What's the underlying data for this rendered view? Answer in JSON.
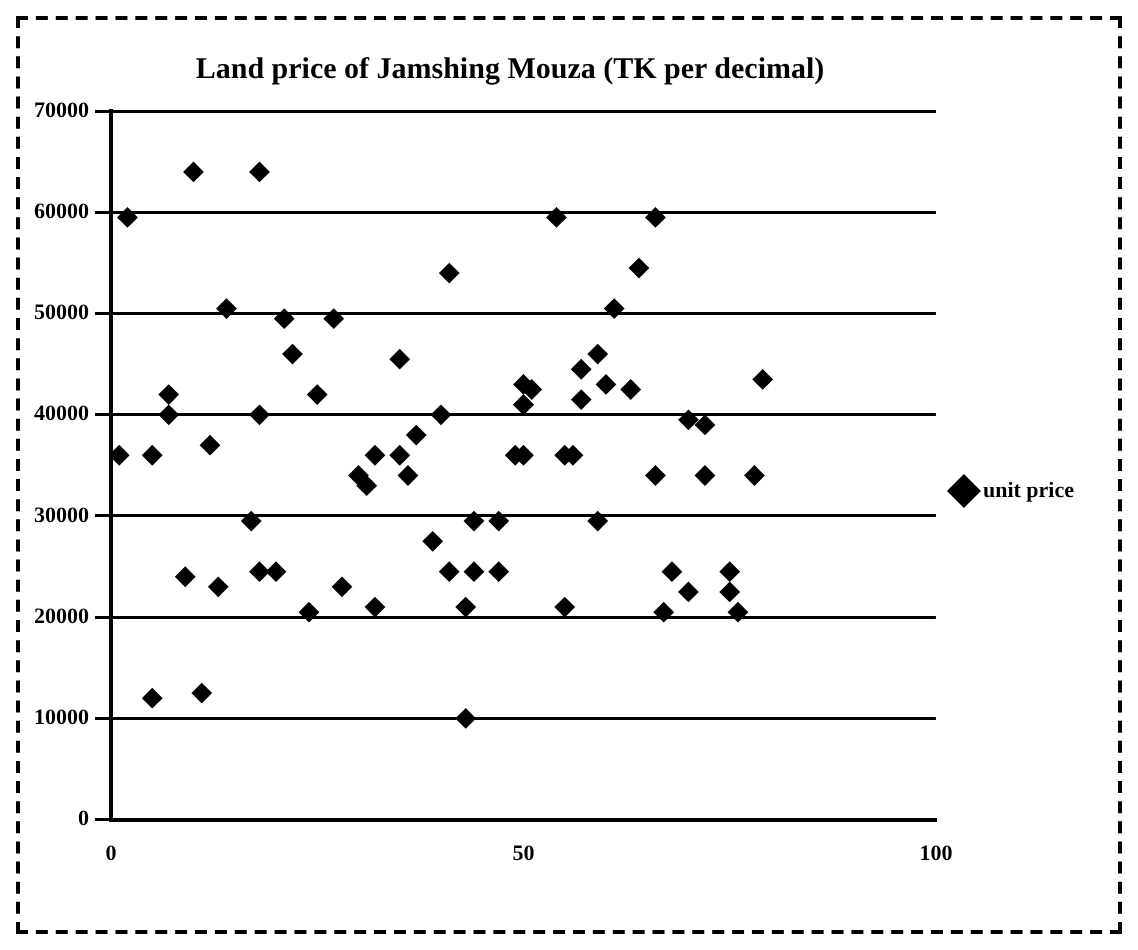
{
  "chart_data": {
    "type": "scatter",
    "title": "Land price of Jamshing Mouza (TK per decimal)",
    "series": [
      {
        "name": "unit price",
        "color": "#000000",
        "x": [
          10,
          18,
          2,
          54,
          41,
          14,
          21,
          22,
          27,
          35,
          7,
          7,
          18,
          25,
          12,
          1,
          5,
          40,
          37,
          35,
          32,
          30,
          31,
          36,
          50,
          50,
          49,
          55,
          57,
          17,
          9,
          13,
          18,
          20,
          24,
          28,
          32,
          39,
          41,
          44,
          47,
          44,
          47,
          43,
          55,
          5,
          11,
          43,
          66,
          64,
          61,
          59,
          79,
          51,
          50,
          57,
          60,
          63,
          70,
          72,
          50,
          56,
          66,
          72,
          78,
          59,
          68,
          75,
          75,
          76,
          67,
          70
        ],
        "values": [
          64000,
          64000,
          59500,
          59500,
          54000,
          50500,
          49500,
          46000,
          49500,
          45500,
          42000,
          40000,
          40000,
          42000,
          37000,
          36000,
          36000,
          40000,
          38000,
          36000,
          36000,
          34000,
          33000,
          34000,
          43000,
          41000,
          36000,
          36000,
          44500,
          29500,
          24000,
          23000,
          24500,
          24500,
          20500,
          23000,
          21000,
          27500,
          24500,
          24500,
          24500,
          29500,
          29500,
          21000,
          21000,
          12000,
          12500,
          10000,
          59500,
          54500,
          50500,
          46000,
          43500,
          42500,
          41000,
          41500,
          43000,
          42500,
          39500,
          39000,
          36000,
          36000,
          34000,
          34000,
          34000,
          29500,
          24500,
          24500,
          22500,
          20500,
          20500,
          22500
        ]
      }
    ],
    "xlim": [
      0,
      100
    ],
    "xticks": [
      0,
      50,
      100
    ],
    "ylim": [
      0,
      70000
    ],
    "yticks": [
      0,
      10000,
      20000,
      30000,
      40000,
      50000,
      60000,
      70000
    ],
    "grid": "y",
    "legend": "right",
    "marker": "diamond"
  }
}
